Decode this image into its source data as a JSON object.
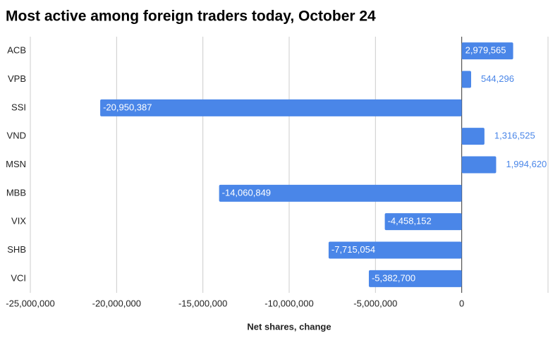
{
  "chart_data": {
    "type": "bar",
    "orientation": "horizontal",
    "title": "Most active among foreign traders today, October 24",
    "x_label": "Net shares, change",
    "categories": [
      "ACB",
      "VPB",
      "SSI",
      "VND",
      "MSN",
      "MBB",
      "VIX",
      "SHB",
      "VCI"
    ],
    "values": [
      2979565,
      544296,
      -20950387,
      1316525,
      1994620,
      -14060849,
      -4458152,
      -7715054,
      -5382700
    ],
    "value_labels": [
      "2,979,565",
      "544,296",
      "-20,950,387",
      "1,316,525",
      "1,994,620",
      "-14,060,849",
      "-4,458,152",
      "-7,715,054",
      "-5,382,700"
    ],
    "color": "#4a86e8",
    "xlim": [
      -25000000,
      5000000
    ],
    "xticks": [
      {
        "value": -25000000,
        "label": "-25,000,000"
      },
      {
        "value": -20000000,
        "label": "-20,000,000"
      },
      {
        "value": -15000000,
        "label": "-15,000,000"
      },
      {
        "value": -10000000,
        "label": "-10,000,000"
      },
      {
        "value": -5000000,
        "label": "-5,000,000"
      },
      0
    ],
    "grid": true
  }
}
